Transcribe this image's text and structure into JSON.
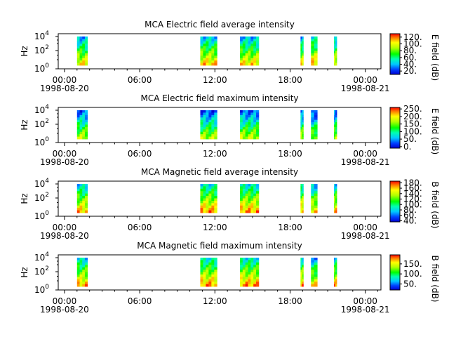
{
  "chart_data": [
    {
      "type": "heatmap",
      "title": "MCA  Electric field average intensity",
      "ylabel": "Hz",
      "y_scale": "log",
      "y_ticks": [
        "10^0",
        "10^2",
        "10^4"
      ],
      "x_ticks": [
        {
          "time": "00:00",
          "date": "1998-08-20"
        },
        {
          "time": "06:00",
          "date": ""
        },
        {
          "time": "12:00",
          "date": ""
        },
        {
          "time": "18:00",
          "date": ""
        },
        {
          "time": "00:00",
          "date": "1998-08-21"
        }
      ],
      "colorbar_label": "E field (dB)",
      "colorbar_ticks": [
        "20.",
        "40.",
        "60.",
        "80.",
        "100.",
        "120."
      ],
      "colorbar_range": [
        10,
        130
      ],
      "data_blocks": [
        {
          "start": "01:00",
          "end": "01:50",
          "mean_db": 70
        },
        {
          "start": "10:50",
          "end": "12:10",
          "mean_db": 75
        },
        {
          "start": "14:00",
          "end": "15:30",
          "mean_db": 72
        },
        {
          "start": "18:50",
          "end": "19:00",
          "mean_db": 70
        },
        {
          "start": "19:40",
          "end": "20:10",
          "mean_db": 78
        },
        {
          "start": "21:30",
          "end": "21:40",
          "mean_db": 70
        }
      ]
    },
    {
      "type": "heatmap",
      "title": "MCA  Electric field maximum intensity",
      "ylabel": "Hz",
      "y_scale": "log",
      "y_ticks": [
        "10^0",
        "10^2",
        "10^4"
      ],
      "x_ticks": [
        {
          "time": "00:00",
          "date": "1998-08-20"
        },
        {
          "time": "06:00",
          "date": ""
        },
        {
          "time": "12:00",
          "date": ""
        },
        {
          "time": "18:00",
          "date": ""
        },
        {
          "time": "00:00",
          "date": "1998-08-21"
        }
      ],
      "colorbar_label": "E field (dB)",
      "colorbar_ticks": [
        "0.",
        "50.",
        "100.",
        "150.",
        "200.",
        "250."
      ],
      "colorbar_range": [
        -10,
        260
      ],
      "data_blocks": [
        {
          "start": "01:00",
          "end": "01:50",
          "mean_db": 100
        },
        {
          "start": "10:50",
          "end": "12:10",
          "mean_db": 95
        },
        {
          "start": "14:00",
          "end": "15:30",
          "mean_db": 100
        },
        {
          "start": "18:50",
          "end": "19:00",
          "mean_db": 100
        },
        {
          "start": "19:40",
          "end": "20:10",
          "mean_db": 85
        },
        {
          "start": "21:30",
          "end": "21:40",
          "mean_db": 100
        }
      ]
    },
    {
      "type": "heatmap",
      "title": "MCA  Magnetic field average intensity",
      "ylabel": "Hz",
      "y_scale": "log",
      "y_ticks": [
        "10^0",
        "10^2",
        "10^4"
      ],
      "x_ticks": [
        {
          "time": "00:00",
          "date": "1998-08-20"
        },
        {
          "time": "06:00",
          "date": ""
        },
        {
          "time": "12:00",
          "date": ""
        },
        {
          "time": "18:00",
          "date": ""
        },
        {
          "time": "00:00",
          "date": "1998-08-21"
        }
      ],
      "colorbar_label": "B field (dB)",
      "colorbar_ticks": [
        "40.",
        "60.",
        "80.",
        "100.",
        "120.",
        "140.",
        "160.",
        "180."
      ],
      "colorbar_range": [
        36,
        186
      ],
      "data_blocks": [
        {
          "start": "01:00",
          "end": "01:50",
          "mean_db": 120
        },
        {
          "start": "10:50",
          "end": "12:10",
          "mean_db": 125
        },
        {
          "start": "14:00",
          "end": "15:30",
          "mean_db": 125
        },
        {
          "start": "18:50",
          "end": "19:00",
          "mean_db": 125
        },
        {
          "start": "19:40",
          "end": "20:10",
          "mean_db": 115
        },
        {
          "start": "21:30",
          "end": "21:40",
          "mean_db": 120
        }
      ]
    },
    {
      "type": "heatmap",
      "title": "MCA  Magnetic field maximum intensity",
      "ylabel": "Hz",
      "y_scale": "log",
      "y_ticks": [
        "10^0",
        "10^2",
        "10^4"
      ],
      "x_ticks": [
        {
          "time": "00:00",
          "date": "1998-08-20"
        },
        {
          "time": "06:00",
          "date": ""
        },
        {
          "time": "12:00",
          "date": ""
        },
        {
          "time": "18:00",
          "date": ""
        },
        {
          "time": "00:00",
          "date": "1998-08-21"
        }
      ],
      "colorbar_label": "B field (dB)",
      "colorbar_ticks": [
        "50.",
        "100.",
        "150."
      ],
      "colorbar_range": [
        20,
        195
      ],
      "data_blocks": [
        {
          "start": "01:00",
          "end": "01:50",
          "mean_db": 120
        },
        {
          "start": "10:50",
          "end": "12:10",
          "mean_db": 125
        },
        {
          "start": "14:00",
          "end": "15:30",
          "mean_db": 125
        },
        {
          "start": "18:50",
          "end": "19:00",
          "mean_db": 125
        },
        {
          "start": "19:40",
          "end": "20:10",
          "mean_db": 110
        },
        {
          "start": "21:30",
          "end": "21:40",
          "mean_db": 120
        }
      ]
    }
  ]
}
